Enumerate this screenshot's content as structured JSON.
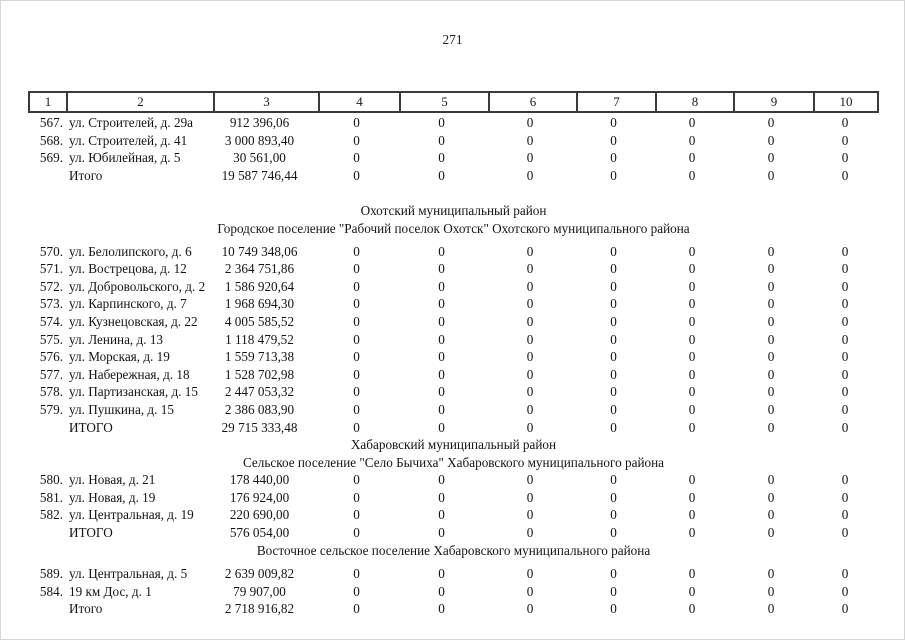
{
  "page_number": "271",
  "table": {
    "columns": [
      "1",
      "2",
      "3",
      "4",
      "5",
      "6",
      "7",
      "8",
      "9",
      "10"
    ],
    "zeros": [
      "0",
      "0",
      "0",
      "0",
      "0",
      "0",
      "0"
    ],
    "lines": [
      {
        "type": "row",
        "num": "567.",
        "address": "ул. Строителей, д. 29а",
        "value": "912 396,06"
      },
      {
        "type": "row",
        "num": "568.",
        "address": "ул. Строителей, д. 41",
        "value": "3 000 893,40"
      },
      {
        "type": "row",
        "num": "569.",
        "address": "ул. Юбилейная, д. 5",
        "value": "30 561,00"
      },
      {
        "type": "row",
        "num": "",
        "address": "Итого",
        "value": "19 587 746,44"
      },
      {
        "type": "gap",
        "h": 18
      },
      {
        "type": "title",
        "text": "Охотский муниципальный район"
      },
      {
        "type": "title",
        "text": "Городское поселение \"Рабочий поселок Охотск\" Охотского муниципального района"
      },
      {
        "type": "gap",
        "h": 5
      },
      {
        "type": "row",
        "num": "570.",
        "address": "ул. Белолипского, д. 6",
        "value": "10 749 348,06"
      },
      {
        "type": "row",
        "num": "571.",
        "address": "ул. Вострецова, д. 12",
        "value": "2 364 751,86"
      },
      {
        "type": "row",
        "num": "572.",
        "address": "ул. Добровольского, д. 2",
        "value": "1 586 920,64"
      },
      {
        "type": "row",
        "num": "573.",
        "address": "ул. Карпинского, д. 7",
        "value": "1 968 694,30"
      },
      {
        "type": "row",
        "num": "574.",
        "address": "ул. Кузнецовская, д. 22",
        "value": "4 005 585,52"
      },
      {
        "type": "row",
        "num": "575.",
        "address": "ул. Ленина, д. 13",
        "value": "1 118 479,52"
      },
      {
        "type": "row",
        "num": "576.",
        "address": "ул. Морская, д. 19",
        "value": "1 559 713,38"
      },
      {
        "type": "row",
        "num": "577.",
        "address": "ул. Набережная, д. 18",
        "value": "1 528 702,98"
      },
      {
        "type": "row",
        "num": "578.",
        "address": "ул. Партизанская, д. 15",
        "value": "2 447 053,32"
      },
      {
        "type": "row",
        "num": "579.",
        "address": "ул. Пушкина, д. 15",
        "value": "2 386 083,90"
      },
      {
        "type": "row",
        "num": "",
        "address": "ИТОГО",
        "value": "29 715 333,48"
      },
      {
        "type": "title",
        "text": "Хабаровский муниципальный район"
      },
      {
        "type": "title",
        "text": "Сельское поселение \"Село Бычиха\" Хабаровского муниципального района"
      },
      {
        "type": "row",
        "num": "580.",
        "address": "ул. Новая, д. 21",
        "value": "178 440,00"
      },
      {
        "type": "row",
        "num": "581.",
        "address": "ул. Новая, д. 19",
        "value": "176 924,00"
      },
      {
        "type": "row",
        "num": "582.",
        "address": "ул. Центральная, д. 19",
        "value": "220 690,00"
      },
      {
        "type": "row",
        "num": "",
        "address": "ИТОГО",
        "value": "576 054,00"
      },
      {
        "type": "title",
        "text": "Восточное сельское поселение Хабаровского муниципального района"
      },
      {
        "type": "gap",
        "h": 6
      },
      {
        "type": "row",
        "num": "589.",
        "address": "ул. Центральная, д. 5",
        "value": "2 639 009,82"
      },
      {
        "type": "row",
        "num": "584.",
        "address": "19 км Дос, д. 1",
        "value": "79 907,00"
      },
      {
        "type": "row",
        "num": "",
        "address": "Итого",
        "value": "2 718 916,82"
      }
    ]
  }
}
